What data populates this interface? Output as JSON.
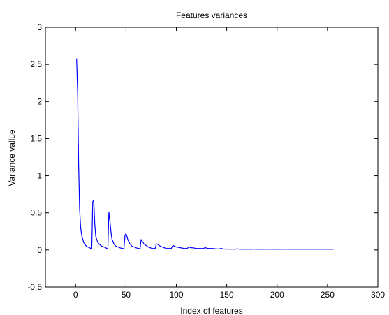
{
  "chart_data": {
    "type": "line",
    "title": "Features variances",
    "xlabel": "Index of features",
    "ylabel": "Variance vallue",
    "xlim": [
      -30,
      300
    ],
    "ylim": [
      -0.5,
      3
    ],
    "x_ticks": [
      0,
      50,
      100,
      150,
      200,
      250,
      300
    ],
    "x_tick_labels": [
      "0",
      "50",
      "100",
      "150",
      "200",
      "250",
      "300"
    ],
    "y_ticks": [
      -0.5,
      0,
      0.5,
      1,
      1.5,
      2,
      2.5,
      3
    ],
    "y_tick_labels": [
      "-0.5",
      "0",
      "0.5",
      "1",
      "1.5",
      "2",
      "2.5",
      "3"
    ],
    "grid": false,
    "line_color": "#0000ff",
    "series": [
      {
        "x": [
          1,
          2,
          3,
          4,
          5,
          6,
          7,
          8,
          10,
          12,
          14,
          15,
          16,
          17,
          18,
          19,
          20,
          22,
          24,
          26,
          28,
          30,
          31,
          32,
          33,
          34,
          35,
          36,
          38,
          40,
          42,
          44,
          46,
          47,
          48,
          49,
          50,
          51,
          52,
          54,
          56,
          58,
          60,
          62,
          63,
          64,
          65,
          66,
          68,
          70,
          72,
          74,
          76,
          78,
          79,
          80,
          81,
          82,
          84,
          86,
          88,
          90,
          92,
          94,
          95,
          96,
          97,
          98,
          100,
          104,
          108,
          110,
          111,
          112,
          113,
          114,
          116,
          120,
          124,
          126,
          127,
          128,
          129,
          130,
          132,
          136,
          140,
          142,
          143,
          144,
          145,
          146,
          150,
          156,
          158,
          159,
          160,
          161,
          162,
          166,
          172,
          174,
          175,
          176,
          177,
          178,
          182,
          188,
          190,
          191,
          192,
          193,
          194,
          198,
          204,
          206,
          207,
          208,
          209,
          210,
          214,
          220,
          222,
          223,
          224,
          225,
          226,
          230,
          236,
          238,
          239,
          240,
          241,
          242,
          246,
          252,
          254,
          255,
          256
        ],
        "y": [
          2.58,
          2.1,
          1.15,
          0.55,
          0.3,
          0.2,
          0.15,
          0.1,
          0.06,
          0.04,
          0.03,
          0.02,
          0.02,
          0.65,
          0.67,
          0.35,
          0.18,
          0.1,
          0.07,
          0.05,
          0.04,
          0.03,
          0.02,
          0.02,
          0.51,
          0.4,
          0.25,
          0.15,
          0.08,
          0.05,
          0.04,
          0.03,
          0.02,
          0.02,
          0.02,
          0.2,
          0.22,
          0.18,
          0.13,
          0.08,
          0.05,
          0.04,
          0.03,
          0.02,
          0.02,
          0.02,
          0.14,
          0.12,
          0.08,
          0.06,
          0.04,
          0.03,
          0.02,
          0.02,
          0.02,
          0.08,
          0.08,
          0.07,
          0.05,
          0.04,
          0.03,
          0.02,
          0.02,
          0.02,
          0.02,
          0.05,
          0.06,
          0.05,
          0.04,
          0.03,
          0.02,
          0.02,
          0.02,
          0.04,
          0.04,
          0.03,
          0.03,
          0.02,
          0.02,
          0.02,
          0.02,
          0.03,
          0.03,
          0.025,
          0.02,
          0.02,
          0.015,
          0.015,
          0.015,
          0.02,
          0.02,
          0.015,
          0.012,
          0.012,
          0.012,
          0.012,
          0.015,
          0.015,
          0.012,
          0.01,
          0.01,
          0.01,
          0.01,
          0.013,
          0.013,
          0.01,
          0.01,
          0.01,
          0.01,
          0.01,
          0.012,
          0.012,
          0.01,
          0.01,
          0.01,
          0.01,
          0.01,
          0.011,
          0.011,
          0.01,
          0.01,
          0.01,
          0.01,
          0.01,
          0.011,
          0.01,
          0.01,
          0.01,
          0.01,
          0.01,
          0.01,
          0.01,
          0.01,
          0.01,
          0.01,
          0.01,
          0.01,
          0.01,
          0.01
        ]
      }
    ]
  }
}
